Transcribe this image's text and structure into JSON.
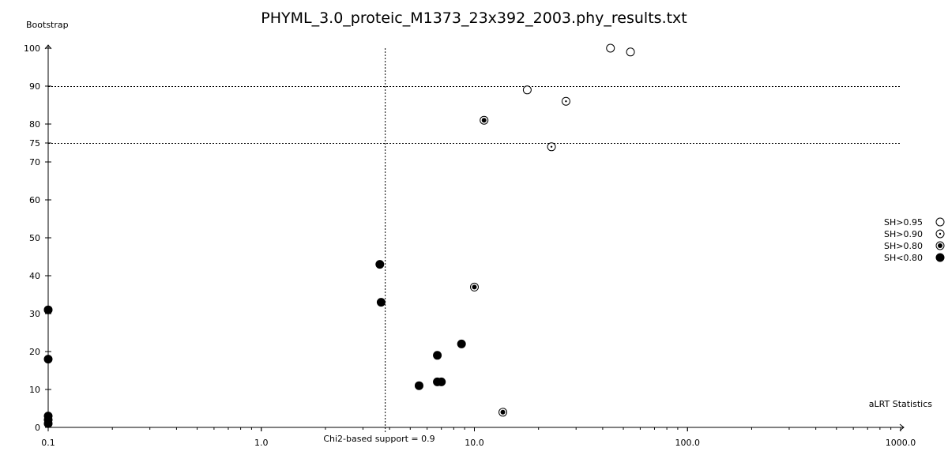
{
  "chart_data": {
    "type": "scatter",
    "title": "PHYML_3.0_proteic_M1373_23x392_2003.phy_results.txt",
    "xlabel": "aLRT Statistics",
    "ylabel": "Bootstrap",
    "x_scale": "log",
    "xlim": [
      0.1,
      1000.0
    ],
    "ylim": [
      0,
      100
    ],
    "x_ticks": [
      {
        "value": 0.1,
        "label": "0.1"
      },
      {
        "value": 1.0,
        "label": "1.0"
      },
      {
        "value": 10.0,
        "label": "10.0"
      },
      {
        "value": 100.0,
        "label": "100.0"
      },
      {
        "value": 1000.0,
        "label": "1000.0"
      }
    ],
    "y_ticks": [
      {
        "value": 0,
        "label": "0"
      },
      {
        "value": 10,
        "label": "10"
      },
      {
        "value": 20,
        "label": "20"
      },
      {
        "value": 30,
        "label": "30"
      },
      {
        "value": 40,
        "label": "40"
      },
      {
        "value": 50,
        "label": "50"
      },
      {
        "value": 60,
        "label": "60"
      },
      {
        "value": 70,
        "label": "70"
      },
      {
        "value": 75,
        "label": "75"
      },
      {
        "value": 80,
        "label": "80"
      },
      {
        "value": 90,
        "label": "90"
      },
      {
        "value": 100,
        "label": "100"
      }
    ],
    "reference_lines": {
      "horizontal": [
        90,
        75
      ],
      "vertical": [
        {
          "x": 3.8,
          "label": "Chi2-based support = 0.9"
        }
      ]
    },
    "legend": {
      "placement": "right",
      "entries": [
        {
          "label": "SH>0.95",
          "style": "open"
        },
        {
          "label": "SH>0.90",
          "style": "dot"
        },
        {
          "label": "SH>0.80",
          "style": "ring"
        },
        {
          "label": "SH<0.80",
          "style": "filled"
        }
      ]
    },
    "series": [
      {
        "name": "SH>0.95",
        "style": "open",
        "points": [
          [
            43.5,
            100
          ],
          [
            54.0,
            99
          ],
          [
            17.7,
            89
          ]
        ]
      },
      {
        "name": "SH>0.90",
        "style": "dot",
        "points": [
          [
            26.9,
            86
          ],
          [
            23.0,
            74
          ]
        ]
      },
      {
        "name": "SH>0.80",
        "style": "ring",
        "points": [
          [
            11.1,
            81
          ],
          [
            10.0,
            37
          ],
          [
            13.6,
            4
          ]
        ]
      },
      {
        "name": "SH<0.80",
        "style": "filled",
        "points": [
          [
            0.1,
            31
          ],
          [
            0.1,
            18
          ],
          [
            0.1,
            3
          ],
          [
            0.1,
            2
          ],
          [
            0.1,
            1
          ],
          [
            3.6,
            43
          ],
          [
            3.65,
            33
          ],
          [
            5.5,
            11
          ],
          [
            6.7,
            19
          ],
          [
            6.7,
            12
          ],
          [
            7.0,
            12
          ],
          [
            8.7,
            22
          ]
        ]
      }
    ]
  }
}
